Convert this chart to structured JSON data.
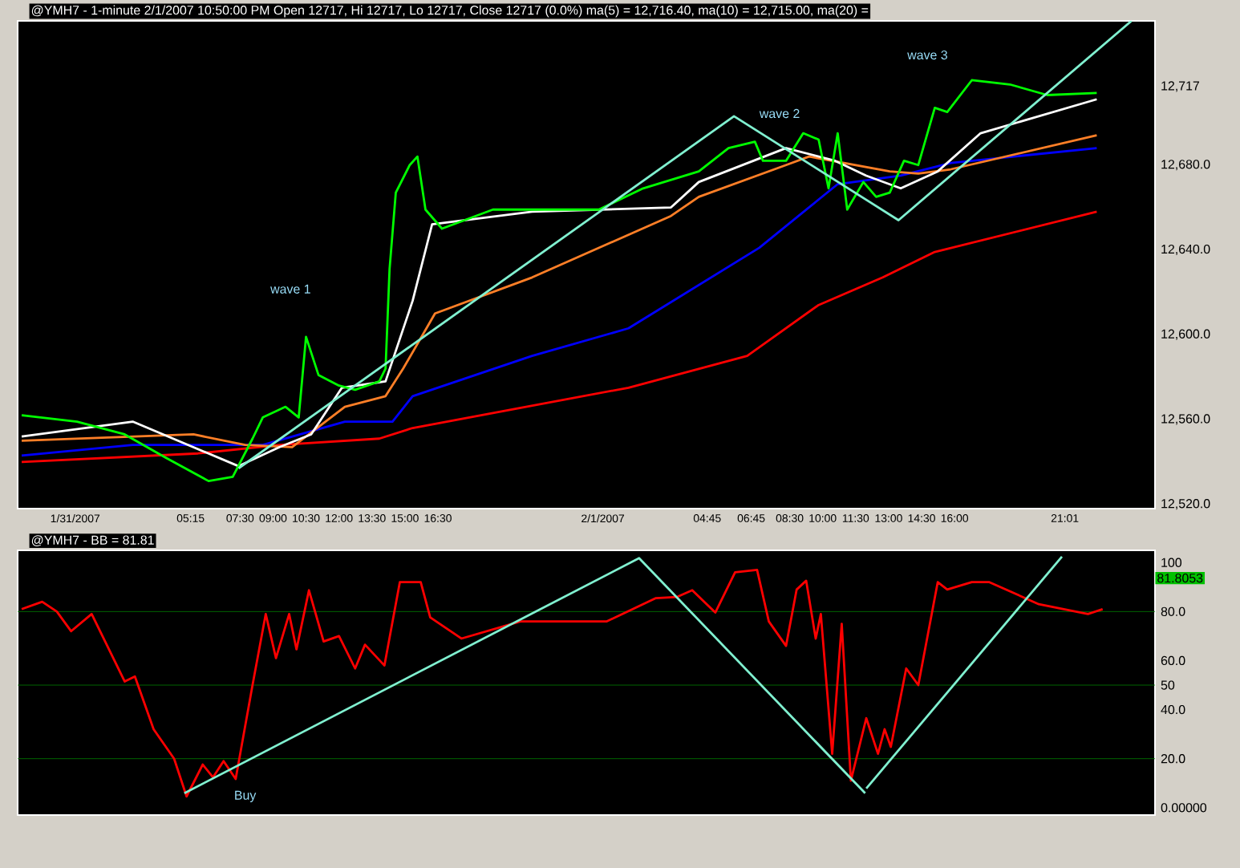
{
  "chart_data": [
    {
      "type": "line",
      "title": "@YMH7 - 1-minute 2/1/2007 10:50:00 PM Open 12717, Hi 12717, Lo 12717, Close 12717 (0.0%) ma(5) = 12,716.40, ma(10) = 12,715.00, ma(20) =",
      "xlim": [
        "2007-01-30T21:23",
        "2007-02-02T01:07"
      ],
      "ylim": [
        12518,
        12748
      ],
      "xticks": [
        {
          "value": "2007-01-31",
          "label": "1/31/2007"
        },
        {
          "value": "2007-01-31T05:15",
          "label": "05:15"
        },
        {
          "value": "2007-01-31T07:30",
          "label": "07:30"
        },
        {
          "value": "2007-01-31T09:00",
          "label": "09:00"
        },
        {
          "value": "2007-01-31T10:30",
          "label": "10:30"
        },
        {
          "value": "2007-01-31T12:00",
          "label": "12:00"
        },
        {
          "value": "2007-01-31T13:30",
          "label": "13:30"
        },
        {
          "value": "2007-01-31T15:00",
          "label": "15:00"
        },
        {
          "value": "2007-01-31T16:30",
          "label": "16:30"
        },
        {
          "value": "2007-02-01",
          "label": "2/1/2007"
        },
        {
          "value": "2007-02-01T04:45",
          "label": "04:45"
        },
        {
          "value": "2007-02-01T06:45",
          "label": "06:45"
        },
        {
          "value": "2007-02-01T08:30",
          "label": "08:30"
        },
        {
          "value": "2007-02-01T10:00",
          "label": "10:00"
        },
        {
          "value": "2007-02-01T11:30",
          "label": "11:30"
        },
        {
          "value": "2007-02-01T13:00",
          "label": "13:00"
        },
        {
          "value": "2007-02-01T14:30",
          "label": "14:30"
        },
        {
          "value": "2007-02-01T16:00",
          "label": "16:00"
        },
        {
          "value": "2007-02-01T21:01",
          "label": "21:01"
        }
      ],
      "yticks": [
        {
          "value": 12520,
          "label": "12,520.0"
        },
        {
          "value": 12560,
          "label": "12,560.0"
        },
        {
          "value": 12600,
          "label": "12,600.0"
        },
        {
          "value": 12640,
          "label": "12,640.0"
        },
        {
          "value": 12680,
          "label": "12,680.0"
        },
        {
          "value": 12717,
          "label": "12,717"
        }
      ],
      "series": [
        {
          "color": "#ff0000",
          "x": [
            "2007-01-30T21:34",
            "2007-01-31T05:35",
            "2007-01-31T09:18",
            "2007-01-31T13:50",
            "2007-01-31T15:21",
            "2007-02-01T01:10",
            "2007-02-01T06:34",
            "2007-02-01T09:49",
            "2007-02-01T12:44",
            "2007-02-01T15:06",
            "2007-02-01T22:28"
          ],
          "values": [
            12540,
            12544,
            12548,
            12551,
            12556,
            12575,
            12590,
            12614,
            12627,
            12639,
            12658
          ]
        },
        {
          "color": "#0000ff",
          "x": [
            "2007-01-30T21:34",
            "2007-01-31T02:37",
            "2007-01-31T08:32",
            "2007-01-31T12:16",
            "2007-01-31T14:26",
            "2007-01-31T15:21",
            "2007-01-31T20:47",
            "2007-02-01T01:10",
            "2007-02-01T07:07",
            "2007-02-01T10:41",
            "2007-02-01T13:33",
            "2007-02-01T15:50",
            "2007-02-01T22:28"
          ],
          "values": [
            12543,
            12548,
            12548,
            12559,
            12559,
            12571,
            12590,
            12603,
            12641,
            12671,
            12675,
            12681,
            12688
          ]
        },
        {
          "color": "#ff7f27",
          "x": [
            "2007-01-30T21:34",
            "2007-01-31T05:23",
            "2007-01-31T07:44",
            "2007-01-31T09:52",
            "2007-01-31T12:16",
            "2007-01-31T14:07",
            "2007-01-31T14:55",
            "2007-01-31T16:22",
            "2007-01-31T20:47",
            "2007-02-01T03:06",
            "2007-02-01T04:22",
            "2007-02-01T08:20",
            "2007-02-01T09:23",
            "2007-02-01T13:03",
            "2007-02-01T14:21",
            "2007-02-01T15:50",
            "2007-02-01T22:28"
          ],
          "values": [
            12550,
            12553,
            12548,
            12547,
            12566,
            12571,
            12584,
            12610,
            12627,
            12656,
            12665,
            12680,
            12684,
            12677,
            12676,
            12678,
            12694
          ]
        },
        {
          "color": "#ffffff",
          "x": [
            "2007-01-30T21:34",
            "2007-01-31T02:37",
            "2007-01-31T07:26",
            "2007-01-31T09:18",
            "2007-01-31T10:44",
            "2007-01-31T12:08",
            "2007-01-31T14:07",
            "2007-01-31T15:21",
            "2007-01-31T16:14",
            "2007-01-31T20:47",
            "2007-02-01T03:06",
            "2007-02-01T04:22",
            "2007-02-01T08:20",
            "2007-02-01T10:34",
            "2007-02-01T11:59",
            "2007-02-01T13:33",
            "2007-02-01T15:14",
            "2007-02-01T17:11",
            "2007-02-01T22:28"
          ],
          "values": [
            12552,
            12559,
            12538,
            12547,
            12553,
            12575,
            12578,
            12616,
            12652,
            12658,
            12660,
            12672,
            12688,
            12682,
            12675,
            12669,
            12677,
            12695,
            12711
          ]
        },
        {
          "color": "#00ff00",
          "x": [
            "2007-01-30T21:34",
            "2007-01-31T00:05",
            "2007-01-31T02:15",
            "2007-01-31T04:07",
            "2007-01-31T06:04",
            "2007-01-31T07:10",
            "2007-01-31T08:04",
            "2007-01-31T08:32",
            "2007-01-31T09:34",
            "2007-01-31T10:10",
            "2007-01-31T10:30",
            "2007-01-31T11:04",
            "2007-01-31T12:00",
            "2007-01-31T12:44",
            "2007-01-31T13:50",
            "2007-01-31T14:07",
            "2007-01-31T14:18",
            "2007-01-31T14:35",
            "2007-01-31T15:13",
            "2007-01-31T15:34",
            "2007-01-31T15:56",
            "2007-01-31T16:41",
            "2007-01-31T19:00",
            "2007-01-31T23:49",
            "2007-02-01T01:50",
            "2007-02-01T04:22",
            "2007-02-01T05:43",
            "2007-02-01T06:55",
            "2007-02-01T07:17",
            "2007-02-01T08:20",
            "2007-02-01T09:07",
            "2007-02-01T09:49",
            "2007-02-01T10:16",
            "2007-02-01T10:41",
            "2007-02-01T11:07",
            "2007-02-01T11:51",
            "2007-02-01T12:26",
            "2007-02-01T13:03",
            "2007-02-01T13:42",
            "2007-02-01T14:21",
            "2007-02-01T15:06",
            "2007-02-01T15:40",
            "2007-02-01T16:47",
            "2007-02-01T18:31",
            "2007-02-01T20:13",
            "2007-02-01T22:28"
          ],
          "values": [
            12562,
            12559,
            12553,
            12542,
            12531,
            12533,
            12551,
            12561,
            12566,
            12561,
            12599,
            12581,
            12576,
            12574,
            12578,
            12584,
            12631,
            12667,
            12680,
            12684,
            12659,
            12650,
            12659,
            12659,
            12669,
            12677,
            12688,
            12691,
            12682,
            12682,
            12695,
            12692,
            12669,
            12695,
            12659,
            12672,
            12665,
            12667,
            12682,
            12680,
            12707,
            12705,
            12720,
            12718,
            12713,
            12714
          ]
        },
        {
          "color": "#80f0d0",
          "x": [
            "2007-01-31T07:26",
            "2007-02-01T05:58",
            "2007-02-01T13:27",
            "2007-02-02T00:03"
          ],
          "values": [
            12537,
            12703,
            12654,
            12748
          ]
        }
      ],
      "annotations": [
        "wave 1",
        "wave 2",
        "wave 3"
      ]
    },
    {
      "type": "line",
      "title": "@YMH7 - BB = 81.81",
      "tick_labels": "y",
      "xlim": [
        "2007-01-30T21:23",
        "2007-02-02T01:07"
      ],
      "ylim": [
        -3,
        105
      ],
      "yticks": [
        {
          "value": 0,
          "label": "0.00000"
        },
        {
          "value": 20,
          "label": "20.0"
        },
        {
          "value": 40,
          "label": "40.0"
        },
        {
          "value": 50,
          "label": "50"
        },
        {
          "value": 60,
          "label": "60.0"
        },
        {
          "value": 80,
          "label": "80.0"
        },
        {
          "value": 100,
          "label": "100"
        }
      ],
      "ref_lines": [
        {
          "axis": "y",
          "value": 20,
          "color": "#008000"
        },
        {
          "axis": "y",
          "value": 50,
          "color": "#008000"
        },
        {
          "axis": "y",
          "value": 80,
          "color": "#008000"
        }
      ],
      "series": [
        {
          "color": "#ff0000",
          "x": [
            "2007-01-30T21:34",
            "2007-01-30T22:30",
            "2007-01-30T23:10",
            "2007-01-30T23:49",
            "2007-01-31T00:45",
            "2007-01-31T02:15",
            "2007-01-31T02:43",
            "2007-01-31T03:34",
            "2007-01-31T04:30",
            "2007-01-31T05:04",
            "2007-01-31T05:48",
            "2007-01-31T06:16",
            "2007-01-31T06:45",
            "2007-01-31T07:18",
            "2007-01-31T08:04",
            "2007-01-31T08:40",
            "2007-01-31T09:08",
            "2007-01-31T09:44",
            "2007-01-31T10:04",
            "2007-01-31T10:38",
            "2007-01-31T11:18",
            "2007-01-31T12:00",
            "2007-01-31T12:44",
            "2007-01-31T13:11",
            "2007-01-31T14:04",
            "2007-01-31T14:46",
            "2007-01-31T15:43",
            "2007-01-31T16:09",
            "2007-01-31T17:34",
            "2007-01-31T20:15",
            "2007-02-01T00:11",
            "2007-02-01T02:25",
            "2007-02-01T03:23",
            "2007-02-01T04:04",
            "2007-02-01T05:07",
            "2007-02-01T06:01",
            "2007-02-01T07:01",
            "2007-02-01T07:33",
            "2007-02-01T08:20",
            "2007-02-01T08:49",
            "2007-02-01T09:15",
            "2007-02-01T09:41",
            "2007-02-01T09:55",
            "2007-02-01T10:26",
            "2007-02-01T10:52",
            "2007-02-01T11:17",
            "2007-02-01T11:59",
            "2007-02-01T12:31",
            "2007-02-01T12:49",
            "2007-02-01T13:06",
            "2007-02-01T13:48",
            "2007-02-01T14:21",
            "2007-02-01T15:14",
            "2007-02-01T15:40",
            "2007-02-01T16:47",
            "2007-02-01T17:35",
            "2007-02-01T19:50",
            "2007-02-01T22:04",
            "2007-02-01T22:44"
          ],
          "values": [
            81,
            84,
            80,
            72,
            79,
            51.5,
            53.5,
            32,
            20,
            4.6,
            17.6,
            12.4,
            19,
            11.7,
            50,
            79,
            61,
            79,
            64.6,
            88.7,
            67.8,
            70,
            56.8,
            66.5,
            58,
            92,
            92,
            77.6,
            69,
            76,
            76,
            85.5,
            86,
            88.7,
            79.6,
            96,
            97,
            76,
            66,
            89,
            92.6,
            69,
            79,
            22,
            75,
            11,
            36.5,
            22,
            32,
            24.8,
            56.8,
            50,
            92,
            89,
            92,
            92,
            83,
            79,
            81
          ]
        },
        {
          "color": "#80f0d0",
          "x": [
            "2007-01-31T04:58",
            "2007-02-01T01:39",
            "2007-02-01T11:56"
          ],
          "values": [
            5.9,
            101.8,
            5.9
          ]
        },
        {
          "color": "#80f0d0",
          "x": [
            "2007-02-01T11:59",
            "2007-02-01T20:53"
          ],
          "values": [
            7.8,
            102.4
          ]
        }
      ],
      "annotations": [
        "Buy",
        "81.8053"
      ]
    }
  ]
}
